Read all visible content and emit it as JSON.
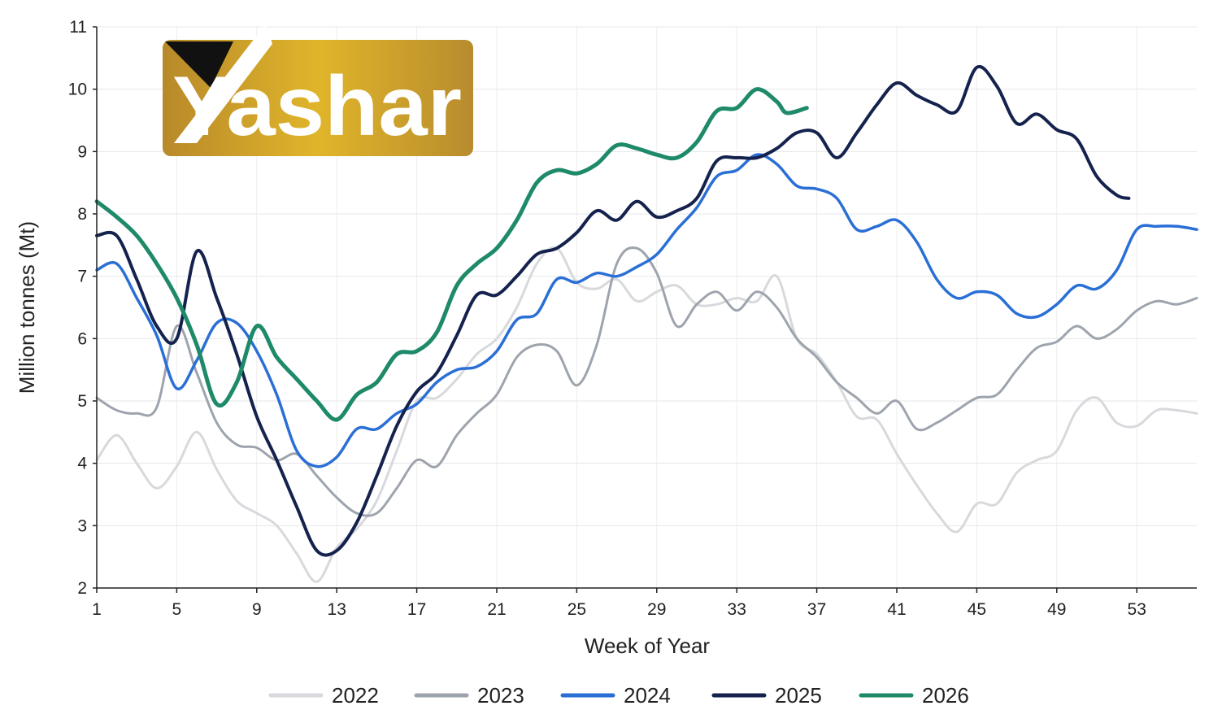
{
  "chart_data": {
    "type": "line",
    "title": "",
    "xlabel": "Week of Year",
    "ylabel": "Million tonnes (Mt)",
    "xlim": [
      1,
      56
    ],
    "ylim": [
      2,
      11
    ],
    "x_ticks": [
      1,
      5,
      9,
      13,
      17,
      21,
      25,
      29,
      33,
      37,
      41,
      45,
      49,
      53
    ],
    "y_ticks": [
      2,
      3,
      4,
      5,
      6,
      7,
      8,
      9,
      10,
      11
    ],
    "grid": true,
    "legend_position": "bottom",
    "series": [
      {
        "name": "2022",
        "color": "#d7d9dc",
        "width": 3,
        "points": [
          [
            1,
            4.05
          ],
          [
            2,
            4.45
          ],
          [
            3,
            4.0
          ],
          [
            4,
            3.6
          ],
          [
            5,
            3.95
          ],
          [
            6,
            4.5
          ],
          [
            7,
            3.9
          ],
          [
            8,
            3.4
          ],
          [
            9,
            3.2
          ],
          [
            10,
            3.0
          ],
          [
            11,
            2.55
          ],
          [
            12,
            2.1
          ],
          [
            13,
            2.65
          ],
          [
            14,
            2.95
          ],
          [
            15,
            3.4
          ],
          [
            16,
            4.2
          ],
          [
            17,
            5.0
          ],
          [
            18,
            5.05
          ],
          [
            19,
            5.35
          ],
          [
            20,
            5.75
          ],
          [
            21,
            6.0
          ],
          [
            22,
            6.5
          ],
          [
            23,
            7.2
          ],
          [
            24,
            7.45
          ],
          [
            25,
            6.9
          ],
          [
            26,
            6.8
          ],
          [
            27,
            6.95
          ],
          [
            28,
            6.6
          ],
          [
            29,
            6.75
          ],
          [
            30,
            6.85
          ],
          [
            31,
            6.55
          ],
          [
            32,
            6.55
          ],
          [
            33,
            6.65
          ],
          [
            34,
            6.6
          ],
          [
            35,
            7.0
          ],
          [
            36,
            6.0
          ],
          [
            37,
            5.75
          ],
          [
            38,
            5.3
          ],
          [
            39,
            4.75
          ],
          [
            40,
            4.7
          ],
          [
            41,
            4.15
          ],
          [
            42,
            3.65
          ],
          [
            43,
            3.2
          ],
          [
            44,
            2.9
          ],
          [
            45,
            3.35
          ],
          [
            46,
            3.35
          ],
          [
            47,
            3.85
          ],
          [
            48,
            4.05
          ],
          [
            49,
            4.2
          ],
          [
            50,
            4.85
          ],
          [
            51,
            5.05
          ],
          [
            52,
            4.65
          ],
          [
            53,
            4.6
          ],
          [
            54,
            4.85
          ],
          [
            55,
            4.85
          ],
          [
            56,
            4.8
          ]
        ]
      },
      {
        "name": "2023",
        "color": "#9ea4ad",
        "width": 3,
        "points": [
          [
            1,
            5.05
          ],
          [
            2,
            4.85
          ],
          [
            3,
            4.8
          ],
          [
            4,
            4.9
          ],
          [
            5,
            6.2
          ],
          [
            6,
            5.45
          ],
          [
            7,
            4.65
          ],
          [
            8,
            4.3
          ],
          [
            9,
            4.25
          ],
          [
            10,
            4.05
          ],
          [
            11,
            4.15
          ],
          [
            12,
            3.8
          ],
          [
            13,
            3.45
          ],
          [
            14,
            3.2
          ],
          [
            15,
            3.2
          ],
          [
            16,
            3.6
          ],
          [
            17,
            4.05
          ],
          [
            18,
            3.95
          ],
          [
            19,
            4.45
          ],
          [
            20,
            4.8
          ],
          [
            21,
            5.1
          ],
          [
            22,
            5.7
          ],
          [
            23,
            5.9
          ],
          [
            24,
            5.8
          ],
          [
            25,
            5.25
          ],
          [
            26,
            5.9
          ],
          [
            27,
            7.2
          ],
          [
            28,
            7.45
          ],
          [
            29,
            7.05
          ],
          [
            30,
            6.2
          ],
          [
            31,
            6.55
          ],
          [
            32,
            6.75
          ],
          [
            33,
            6.45
          ],
          [
            34,
            6.75
          ],
          [
            35,
            6.5
          ],
          [
            36,
            6.0
          ],
          [
            37,
            5.7
          ],
          [
            38,
            5.3
          ],
          [
            39,
            5.05
          ],
          [
            40,
            4.8
          ],
          [
            41,
            5.0
          ],
          [
            42,
            4.55
          ],
          [
            43,
            4.65
          ],
          [
            44,
            4.85
          ],
          [
            45,
            5.05
          ],
          [
            46,
            5.1
          ],
          [
            47,
            5.5
          ],
          [
            48,
            5.85
          ],
          [
            49,
            5.95
          ],
          [
            50,
            6.2
          ],
          [
            51,
            6.0
          ],
          [
            52,
            6.15
          ],
          [
            53,
            6.45
          ],
          [
            54,
            6.6
          ],
          [
            55,
            6.55
          ],
          [
            56,
            6.65
          ]
        ]
      },
      {
        "name": "2024",
        "color": "#2a6fd6",
        "width": 3.5,
        "points": [
          [
            1,
            7.1
          ],
          [
            2,
            7.2
          ],
          [
            3,
            6.65
          ],
          [
            4,
            6.05
          ],
          [
            5,
            5.2
          ],
          [
            6,
            5.65
          ],
          [
            7,
            6.25
          ],
          [
            8,
            6.25
          ],
          [
            9,
            5.8
          ],
          [
            10,
            5.1
          ],
          [
            11,
            4.2
          ],
          [
            12,
            3.95
          ],
          [
            13,
            4.1
          ],
          [
            14,
            4.55
          ],
          [
            15,
            4.55
          ],
          [
            16,
            4.8
          ],
          [
            17,
            4.95
          ],
          [
            18,
            5.3
          ],
          [
            19,
            5.5
          ],
          [
            20,
            5.55
          ],
          [
            21,
            5.8
          ],
          [
            22,
            6.3
          ],
          [
            23,
            6.4
          ],
          [
            24,
            6.95
          ],
          [
            25,
            6.9
          ],
          [
            26,
            7.05
          ],
          [
            27,
            7.0
          ],
          [
            28,
            7.15
          ],
          [
            29,
            7.35
          ],
          [
            30,
            7.75
          ],
          [
            31,
            8.1
          ],
          [
            32,
            8.6
          ],
          [
            33,
            8.7
          ],
          [
            34,
            8.95
          ],
          [
            35,
            8.8
          ],
          [
            36,
            8.45
          ],
          [
            37,
            8.4
          ],
          [
            38,
            8.25
          ],
          [
            39,
            7.75
          ],
          [
            40,
            7.8
          ],
          [
            41,
            7.9
          ],
          [
            42,
            7.55
          ],
          [
            43,
            6.95
          ],
          [
            44,
            6.65
          ],
          [
            45,
            6.75
          ],
          [
            46,
            6.7
          ],
          [
            47,
            6.4
          ],
          [
            48,
            6.35
          ],
          [
            49,
            6.55
          ],
          [
            50,
            6.85
          ],
          [
            51,
            6.8
          ],
          [
            52,
            7.1
          ],
          [
            53,
            7.75
          ],
          [
            54,
            7.8
          ],
          [
            55,
            7.8
          ],
          [
            56,
            7.75
          ]
        ]
      },
      {
        "name": "2025",
        "color": "#14224d",
        "width": 4,
        "points": [
          [
            1,
            7.65
          ],
          [
            2,
            7.65
          ],
          [
            3,
            6.95
          ],
          [
            4,
            6.2
          ],
          [
            5,
            6.0
          ],
          [
            6,
            7.4
          ],
          [
            7,
            6.65
          ],
          [
            8,
            5.75
          ],
          [
            9,
            4.75
          ],
          [
            10,
            4.05
          ],
          [
            11,
            3.3
          ],
          [
            12,
            2.6
          ],
          [
            13,
            2.6
          ],
          [
            14,
            3.05
          ],
          [
            15,
            3.8
          ],
          [
            16,
            4.6
          ],
          [
            17,
            5.15
          ],
          [
            18,
            5.45
          ],
          [
            19,
            6.05
          ],
          [
            20,
            6.7
          ],
          [
            21,
            6.7
          ],
          [
            22,
            7.0
          ],
          [
            23,
            7.35
          ],
          [
            24,
            7.45
          ],
          [
            25,
            7.7
          ],
          [
            26,
            8.05
          ],
          [
            27,
            7.9
          ],
          [
            28,
            8.2
          ],
          [
            29,
            7.95
          ],
          [
            30,
            8.05
          ],
          [
            31,
            8.25
          ],
          [
            32,
            8.85
          ],
          [
            33,
            8.9
          ],
          [
            34,
            8.9
          ],
          [
            35,
            9.05
          ],
          [
            36,
            9.3
          ],
          [
            37,
            9.3
          ],
          [
            38,
            8.9
          ],
          [
            39,
            9.3
          ],
          [
            40,
            9.75
          ],
          [
            41,
            10.1
          ],
          [
            42,
            9.9
          ],
          [
            43,
            9.75
          ],
          [
            44,
            9.65
          ],
          [
            45,
            10.35
          ],
          [
            46,
            10.05
          ],
          [
            47,
            9.45
          ],
          [
            48,
            9.6
          ],
          [
            49,
            9.35
          ],
          [
            50,
            9.2
          ],
          [
            51,
            8.6
          ],
          [
            52,
            8.3
          ],
          [
            52.6,
            8.25
          ]
        ]
      },
      {
        "name": "2026",
        "color": "#1e8a6a",
        "width": 5,
        "points": [
          [
            1,
            8.2
          ],
          [
            2,
            7.95
          ],
          [
            3,
            7.65
          ],
          [
            4,
            7.2
          ],
          [
            5,
            6.65
          ],
          [
            6,
            5.9
          ],
          [
            7,
            4.95
          ],
          [
            8,
            5.3
          ],
          [
            9,
            6.2
          ],
          [
            10,
            5.7
          ],
          [
            11,
            5.35
          ],
          [
            12,
            5.0
          ],
          [
            13,
            4.7
          ],
          [
            14,
            5.1
          ],
          [
            15,
            5.3
          ],
          [
            16,
            5.75
          ],
          [
            17,
            5.8
          ],
          [
            18,
            6.1
          ],
          [
            19,
            6.85
          ],
          [
            20,
            7.2
          ],
          [
            21,
            7.45
          ],
          [
            22,
            7.9
          ],
          [
            23,
            8.5
          ],
          [
            24,
            8.7
          ],
          [
            25,
            8.65
          ],
          [
            26,
            8.8
          ],
          [
            27,
            9.1
          ],
          [
            28,
            9.05
          ],
          [
            29,
            8.95
          ],
          [
            30,
            8.9
          ],
          [
            31,
            9.15
          ],
          [
            32,
            9.65
          ],
          [
            33,
            9.7
          ],
          [
            34,
            10.0
          ],
          [
            35,
            9.8
          ],
          [
            35.5,
            9.62
          ],
          [
            36.5,
            9.7
          ]
        ]
      }
    ]
  },
  "logo": {
    "text": "Yashar"
  }
}
